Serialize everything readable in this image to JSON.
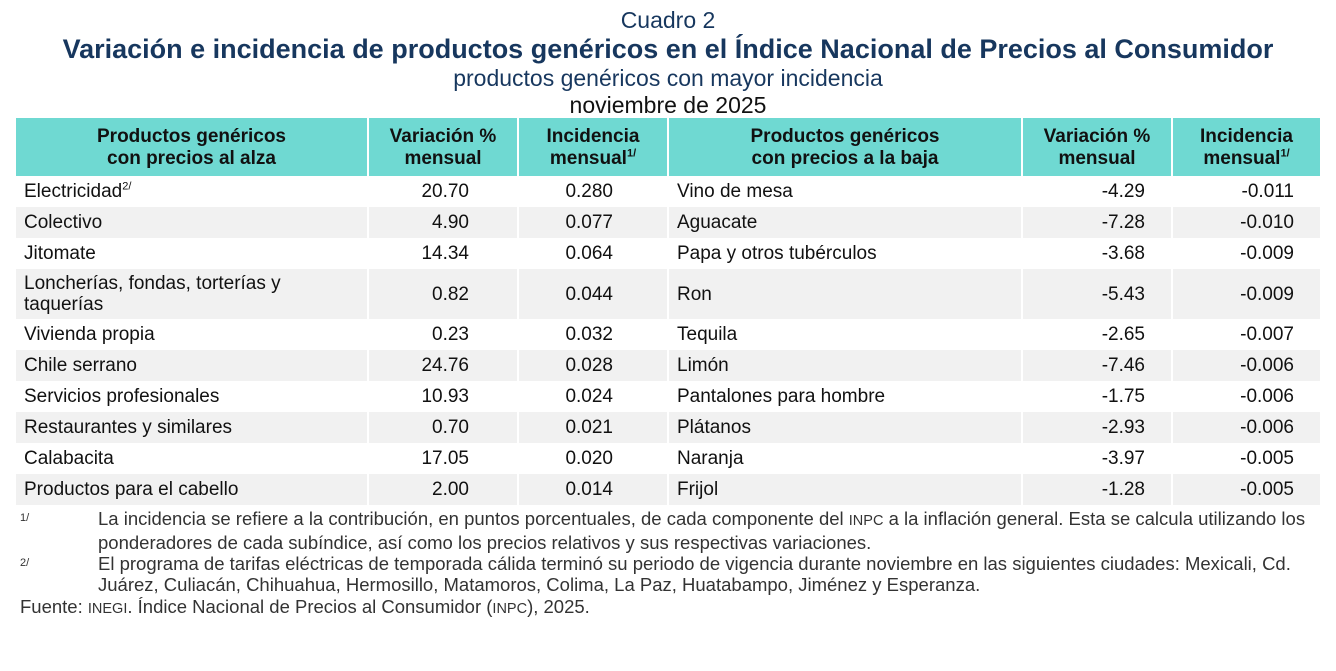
{
  "title": {
    "cuadro": "Cuadro 2",
    "main": "Variación e incidencia de productos genéricos en el Índice Nacional de Precios al Consumidor",
    "subtitle": "productos genéricos con mayor incidencia",
    "date": "noviembre de 2025"
  },
  "headers": {
    "up_name_1": "Productos genéricos",
    "up_name_2": "con precios al alza",
    "var_1": "Variación %",
    "var_2": "mensual",
    "inc_1": "Incidencia",
    "inc_2": "mensual",
    "inc_sup": "1/",
    "down_name_1": "Productos genéricos",
    "down_name_2": "con precios a la baja",
    "var2_1": "Variación %",
    "var2_2": "mensual",
    "inc2_1": "Incidencia",
    "inc2_2": "mensual",
    "inc2_sup": "1/"
  },
  "rows": [
    {
      "up": "Electricidad",
      "up_sup": "2/",
      "up_var": "20.70",
      "up_inc": "0.280",
      "down": "Vino de mesa",
      "down_var": "-4.29",
      "down_inc": "-0.011"
    },
    {
      "up": "Colectivo",
      "up_sup": "",
      "up_var": "4.90",
      "up_inc": "0.077",
      "down": "Aguacate",
      "down_var": "-7.28",
      "down_inc": "-0.010"
    },
    {
      "up": "Jitomate",
      "up_sup": "",
      "up_var": "14.34",
      "up_inc": "0.064",
      "down": "Papa y otros tubérculos",
      "down_var": "-3.68",
      "down_inc": "-0.009"
    },
    {
      "up": "Loncherías, fondas, torterías y taquerías",
      "up_sup": "",
      "up_var": "0.82",
      "up_inc": "0.044",
      "down": "Ron",
      "down_var": "-5.43",
      "down_inc": "-0.009"
    },
    {
      "up": "Vivienda propia",
      "up_sup": "",
      "up_var": "0.23",
      "up_inc": "0.032",
      "down": "Tequila",
      "down_var": "-2.65",
      "down_inc": "-0.007"
    },
    {
      "up": "Chile serrano",
      "up_sup": "",
      "up_var": "24.76",
      "up_inc": "0.028",
      "down": "Limón",
      "down_var": "-7.46",
      "down_inc": "-0.006"
    },
    {
      "up": "Servicios profesionales",
      "up_sup": "",
      "up_var": "10.93",
      "up_inc": "0.024",
      "down": "Pantalones para hombre",
      "down_var": "-1.75",
      "down_inc": "-0.006"
    },
    {
      "up": "Restaurantes y similares",
      "up_sup": "",
      "up_var": "0.70",
      "up_inc": "0.021",
      "down": "Plátanos",
      "down_var": "-2.93",
      "down_inc": "-0.006"
    },
    {
      "up": "Calabacita",
      "up_sup": "",
      "up_var": "17.05",
      "up_inc": "0.020",
      "down": "Naranja",
      "down_var": "-3.97",
      "down_inc": "-0.005"
    },
    {
      "up": "Productos para el cabello",
      "up_sup": "",
      "up_var": "2.00",
      "up_inc": "0.014",
      "down": "Frijol",
      "down_var": "-1.28",
      "down_inc": "-0.005"
    }
  ],
  "notes": {
    "n1_mark": "1/",
    "n1_a": "La incidencia se refiere a la contribución, en puntos porcentuales, de cada componente del ",
    "n1_inpc": "INPC",
    "n1_b": " a la inflación general. Esta se calcula utilizando los ponderadores de cada subíndice, así como los precios relativos y sus respectivas variaciones.",
    "n2_mark": "2/",
    "n2": "El programa de tarifas eléctricas de temporada cálida terminó su periodo de vigencia durante noviembre en las siguientes ciudades: Mexicali, Cd. Juárez, Culiacán, Chihuahua, Hermosillo, Matamoros, Colima, La Paz, Huatabampo, Jiménez y Esperanza.",
    "source_a": "Fuente: ",
    "source_inegi": "INEGI",
    "source_b": ". Índice Nacional de Precios al Consumidor (",
    "source_inpc": "INPC",
    "source_c": "), 2025."
  }
}
